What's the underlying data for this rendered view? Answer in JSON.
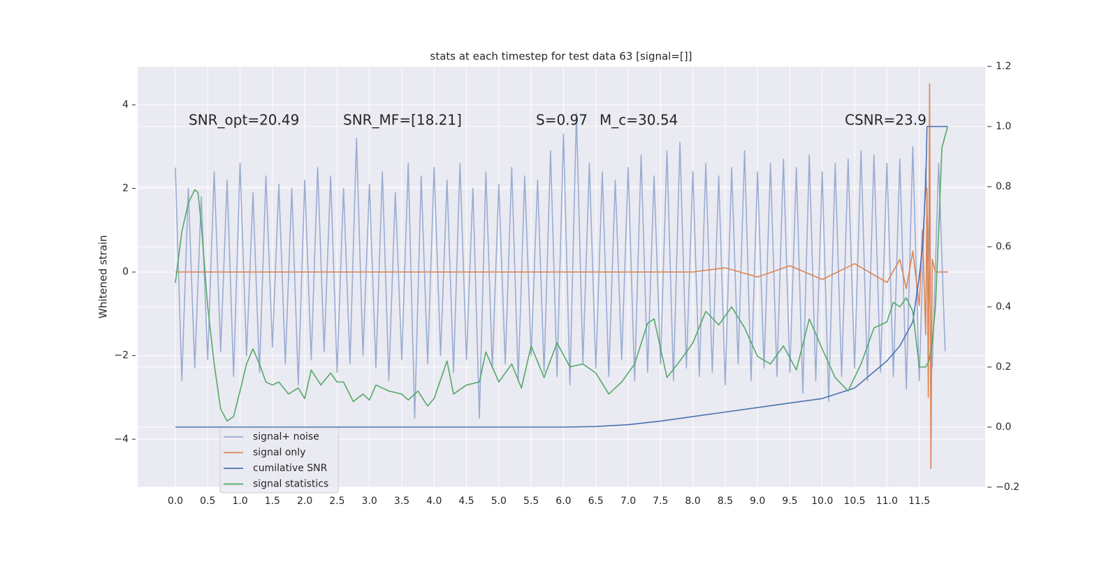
{
  "chart_data": {
    "type": "line",
    "title": "stats at each timestep for test data 63 [signal=[]]",
    "ylabel": "Whitened strain",
    "annotations": [
      "SNR_opt=20.49",
      "SNR_MF=[18.21]",
      "S=0.97",
      "M_c=30.54",
      "CSNR=23.9"
    ],
    "xlim": [
      -0.583,
      12.52
    ],
    "ylim": [
      -5.15,
      4.92
    ],
    "y2lim": [
      -0.2,
      1.2
    ],
    "xticks": [
      {
        "value": 0,
        "label": "0.0"
      },
      0.5,
      {
        "value": 1,
        "label": "1.0"
      },
      1.5,
      {
        "value": 2,
        "label": "2.0"
      },
      2.5,
      {
        "value": 3,
        "label": "3.0"
      },
      3.5,
      {
        "value": 4,
        "label": "4.0"
      },
      4.5,
      {
        "value": 5,
        "label": "5.0"
      },
      5.5,
      {
        "value": 6,
        "label": "6.0"
      },
      6.5,
      {
        "value": 7,
        "label": "7.0"
      },
      7.5,
      {
        "value": 8,
        "label": "8.0"
      },
      8.5,
      {
        "value": 9,
        "label": "9.0"
      },
      9.5,
      {
        "value": 10,
        "label": "10.0"
      },
      10.5,
      {
        "value": 11,
        "label": "11.0"
      },
      11.5
    ],
    "yticks": [
      {
        "value": -4,
        "label": "−4"
      },
      {
        "value": -2,
        "label": "−2"
      },
      0,
      2,
      4
    ],
    "y2ticks": [
      {
        "value": -0.2,
        "label": "−0.2"
      },
      {
        "value": 0,
        "label": "0.0"
      },
      0.2,
      0.4,
      0.6,
      0.8,
      {
        "value": 1,
        "label": "1.0"
      },
      1.2
    ],
    "grid": true,
    "legend": "lower left",
    "series": [
      {
        "name": "signal+ noise",
        "color": "#9aacd1",
        "x": [
          0,
          0.1,
          0.2,
          0.3,
          0.4,
          0.5,
          0.6,
          0.7,
          0.8,
          0.9,
          1,
          1.1,
          1.2,
          1.3,
          1.4,
          1.5,
          1.6,
          1.7,
          1.8,
          1.9,
          2,
          2.1,
          2.2,
          2.3,
          2.4,
          2.5,
          2.6,
          2.7,
          2.8,
          2.9,
          3,
          3.1,
          3.2,
          3.3,
          3.4,
          3.5,
          3.6,
          3.7,
          3.8,
          3.9,
          4,
          4.1,
          4.2,
          4.3,
          4.4,
          4.5,
          4.6,
          4.7,
          4.8,
          4.9,
          5,
          5.1,
          5.2,
          5.3,
          5.4,
          5.5,
          5.6,
          5.7,
          5.8,
          5.9,
          6,
          6.1,
          6.2,
          6.3,
          6.4,
          6.5,
          6.6,
          6.7,
          6.8,
          6.9,
          7,
          7.1,
          7.2,
          7.3,
          7.4,
          7.5,
          7.6,
          7.7,
          7.8,
          7.9,
          8,
          8.1,
          8.2,
          8.3,
          8.4,
          8.5,
          8.6,
          8.7,
          8.8,
          8.9,
          9,
          9.1,
          9.2,
          9.3,
          9.4,
          9.5,
          9.6,
          9.7,
          9.8,
          9.9,
          10,
          10.1,
          10.2,
          10.3,
          10.4,
          10.5,
          10.6,
          10.7,
          10.8,
          10.9,
          11,
          11.1,
          11.2,
          11.3,
          11.4,
          11.5,
          11.6,
          11.7,
          11.8,
          11.9
        ],
        "values": [
          2.5,
          -2.6,
          2.0,
          -2.3,
          1.8,
          -2.1,
          2.4,
          -1.9,
          2.2,
          -2.5,
          2.6,
          -2.0,
          1.9,
          -2.4,
          2.3,
          -1.8,
          2.1,
          -2.2,
          2.0,
          -2.7,
          2.2,
          -2.1,
          2.5,
          -1.9,
          2.3,
          -2.4,
          2.0,
          -2.2,
          3.2,
          -2.0,
          2.1,
          -2.3,
          2.4,
          -2.6,
          1.9,
          -2.1,
          2.6,
          -3.5,
          2.3,
          -2.2,
          2.5,
          -2.0,
          2.2,
          -2.4,
          2.6,
          -2.1,
          2.0,
          -3.5,
          2.4,
          -2.3,
          2.1,
          -2.2,
          2.5,
          -2.6,
          2.3,
          -2.0,
          2.2,
          -2.4,
          2.9,
          -2.5,
          3.3,
          -2.7,
          3.8,
          -2.2,
          2.6,
          -2.3,
          2.4,
          -2.5,
          2.2,
          -2.1,
          2.5,
          -2.6,
          2.8,
          -2.4,
          2.3,
          -2.2,
          2.9,
          -2.6,
          3.1,
          -2.3,
          2.4,
          -2.5,
          2.6,
          -2.4,
          2.3,
          -2.7,
          2.5,
          -2.2,
          2.9,
          -2.6,
          2.4,
          -2.3,
          2.6,
          -2.5,
          2.7,
          -2.4,
          2.5,
          -2.9,
          2.8,
          -2.6,
          2.4,
          -3.1,
          2.6,
          -2.5,
          2.7,
          -2.3,
          2.9,
          -2.6,
          2.8,
          -2.4,
          2.6,
          -2.5,
          2.7,
          -2.8,
          3.0,
          -2.6,
          2.5,
          -2.3,
          2.6,
          -1.9
        ]
      },
      {
        "name": "signal only",
        "color": "#dd8452",
        "x": [
          0,
          8,
          8.5,
          9,
          9.5,
          10,
          10.5,
          11,
          11.2,
          11.3,
          11.4,
          11.5,
          11.55,
          11.6,
          11.62,
          11.64,
          11.66,
          11.68,
          11.7,
          11.75,
          11.94
        ],
        "values": [
          0,
          0,
          0.1,
          -0.12,
          0.15,
          -0.18,
          0.2,
          -0.25,
          0.3,
          -0.4,
          0.5,
          -0.8,
          1.0,
          -1.5,
          2.0,
          -3.0,
          4.5,
          -4.7,
          0.3,
          0,
          0
        ]
      },
      {
        "name": "cumilative SNR",
        "color": "#4c72b0",
        "axis": "y2",
        "x": [
          0,
          6,
          6.5,
          7,
          7.5,
          8,
          8.5,
          9,
          9.5,
          10,
          10.5,
          11,
          11.2,
          11.4,
          11.5,
          11.55,
          11.6,
          11.62,
          11.65,
          11.94
        ],
        "values": [
          0,
          0,
          0.002,
          0.008,
          0.02,
          0.035,
          0.05,
          0.065,
          0.08,
          0.095,
          0.13,
          0.22,
          0.27,
          0.35,
          0.5,
          0.6,
          0.8,
          1.0,
          1.0,
          1.0
        ]
      },
      {
        "name": "signal statistics",
        "color": "#55a868",
        "axis": "y2",
        "x": [
          0,
          0.1,
          0.2,
          0.3,
          0.35,
          0.4,
          0.5,
          0.6,
          0.7,
          0.8,
          0.9,
          1.0,
          1.1,
          1.2,
          1.3,
          1.4,
          1.5,
          1.6,
          1.75,
          1.9,
          2.0,
          2.1,
          2.25,
          2.4,
          2.5,
          2.6,
          2.75,
          2.9,
          3.0,
          3.1,
          3.3,
          3.5,
          3.6,
          3.75,
          3.9,
          4.0,
          4.2,
          4.3,
          4.5,
          4.7,
          4.8,
          5.0,
          5.2,
          5.35,
          5.5,
          5.7,
          5.9,
          6.1,
          6.3,
          6.5,
          6.7,
          6.9,
          7.1,
          7.3,
          7.4,
          7.6,
          7.8,
          8.0,
          8.2,
          8.4,
          8.6,
          8.8,
          9.0,
          9.2,
          9.4,
          9.6,
          9.8,
          10.0,
          10.2,
          10.4,
          10.6,
          10.8,
          11.0,
          11.1,
          11.2,
          11.3,
          11.4,
          11.5,
          11.6,
          11.65,
          11.7,
          11.75,
          11.8,
          11.85,
          11.94
        ],
        "values": [
          0.48,
          0.65,
          0.745,
          0.79,
          0.78,
          0.675,
          0.4,
          0.21,
          0.06,
          0.02,
          0.035,
          0.12,
          0.21,
          0.26,
          0.21,
          0.15,
          0.14,
          0.15,
          0.11,
          0.13,
          0.095,
          0.19,
          0.14,
          0.18,
          0.15,
          0.15,
          0.085,
          0.11,
          0.09,
          0.14,
          0.12,
          0.11,
          0.09,
          0.12,
          0.07,
          0.095,
          0.22,
          0.11,
          0.14,
          0.15,
          0.25,
          0.15,
          0.21,
          0.13,
          0.27,
          0.165,
          0.28,
          0.2,
          0.21,
          0.18,
          0.11,
          0.15,
          0.21,
          0.345,
          0.36,
          0.165,
          0.22,
          0.28,
          0.385,
          0.34,
          0.4,
          0.33,
          0.235,
          0.21,
          0.27,
          0.19,
          0.36,
          0.26,
          0.165,
          0.12,
          0.21,
          0.33,
          0.35,
          0.415,
          0.4,
          0.43,
          0.385,
          0.2,
          0.2,
          0.22,
          0.28,
          0.4,
          0.65,
          0.93,
          1.0
        ]
      }
    ]
  }
}
